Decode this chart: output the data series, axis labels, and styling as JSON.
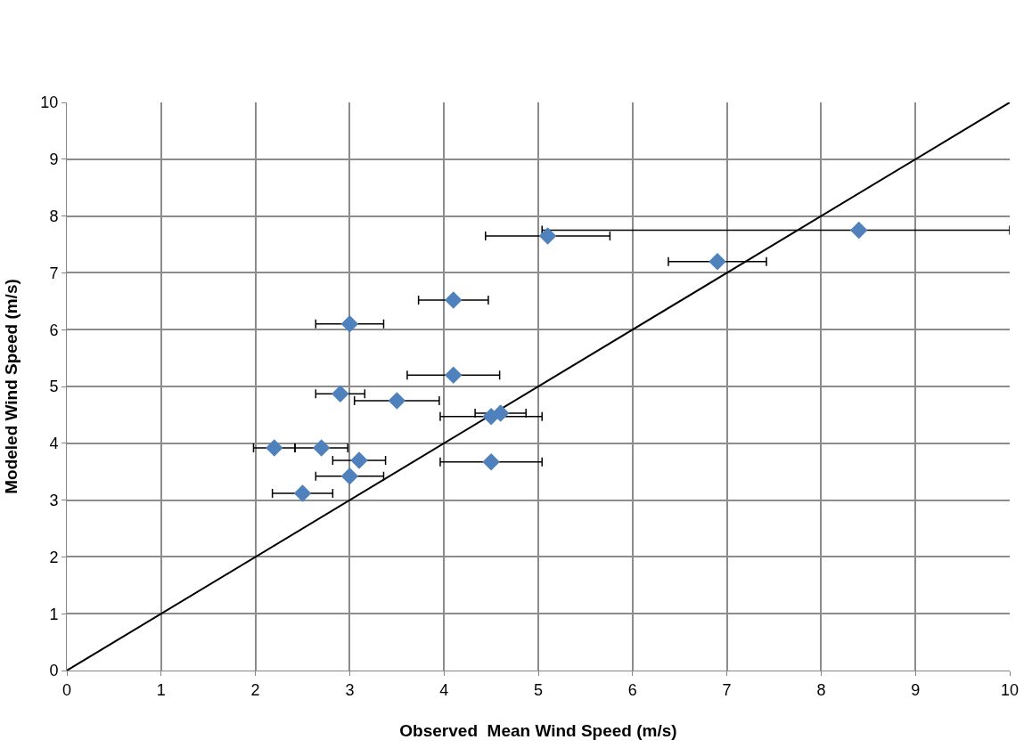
{
  "chart_data": {
    "type": "scatter",
    "xlabel": "Observed  Mean Wind Speed (m/s)",
    "ylabel": "Modeled Wind Speed (m/s)",
    "xlim": [
      0,
      10
    ],
    "ylim": [
      0,
      10
    ],
    "xticks": [
      0,
      1,
      2,
      3,
      4,
      5,
      6,
      7,
      8,
      9,
      10
    ],
    "yticks": [
      0,
      1,
      2,
      3,
      4,
      5,
      6,
      7,
      8,
      9,
      10
    ],
    "grid": true,
    "series": [
      {
        "type": "line",
        "color": "#000000",
        "x": [
          0,
          10
        ],
        "values": [
          0,
          10
        ],
        "marker": "none",
        "line_style": "solid"
      },
      {
        "color": "#4f81bd",
        "marker": "diamond",
        "x": [
          8.4,
          5.1,
          6.9,
          4.1,
          3.0,
          4.1,
          2.9,
          3.5,
          4.5,
          4.6,
          2.2,
          2.7,
          3.1,
          3.0,
          4.5,
          2.5
        ],
        "values": [
          7.75,
          7.65,
          7.2,
          6.52,
          6.1,
          5.2,
          4.87,
          4.75,
          4.47,
          4.53,
          3.92,
          3.92,
          3.7,
          3.42,
          3.67,
          3.12
        ],
        "xerrors": [
          [
            5.04,
            10
          ],
          0.66,
          0.52,
          0.37,
          0.36,
          0.49,
          0.26,
          0.45,
          0.54,
          0.27,
          0.22,
          0.28,
          0.28,
          0.36,
          0.54,
          0.32
        ]
      }
    ]
  }
}
